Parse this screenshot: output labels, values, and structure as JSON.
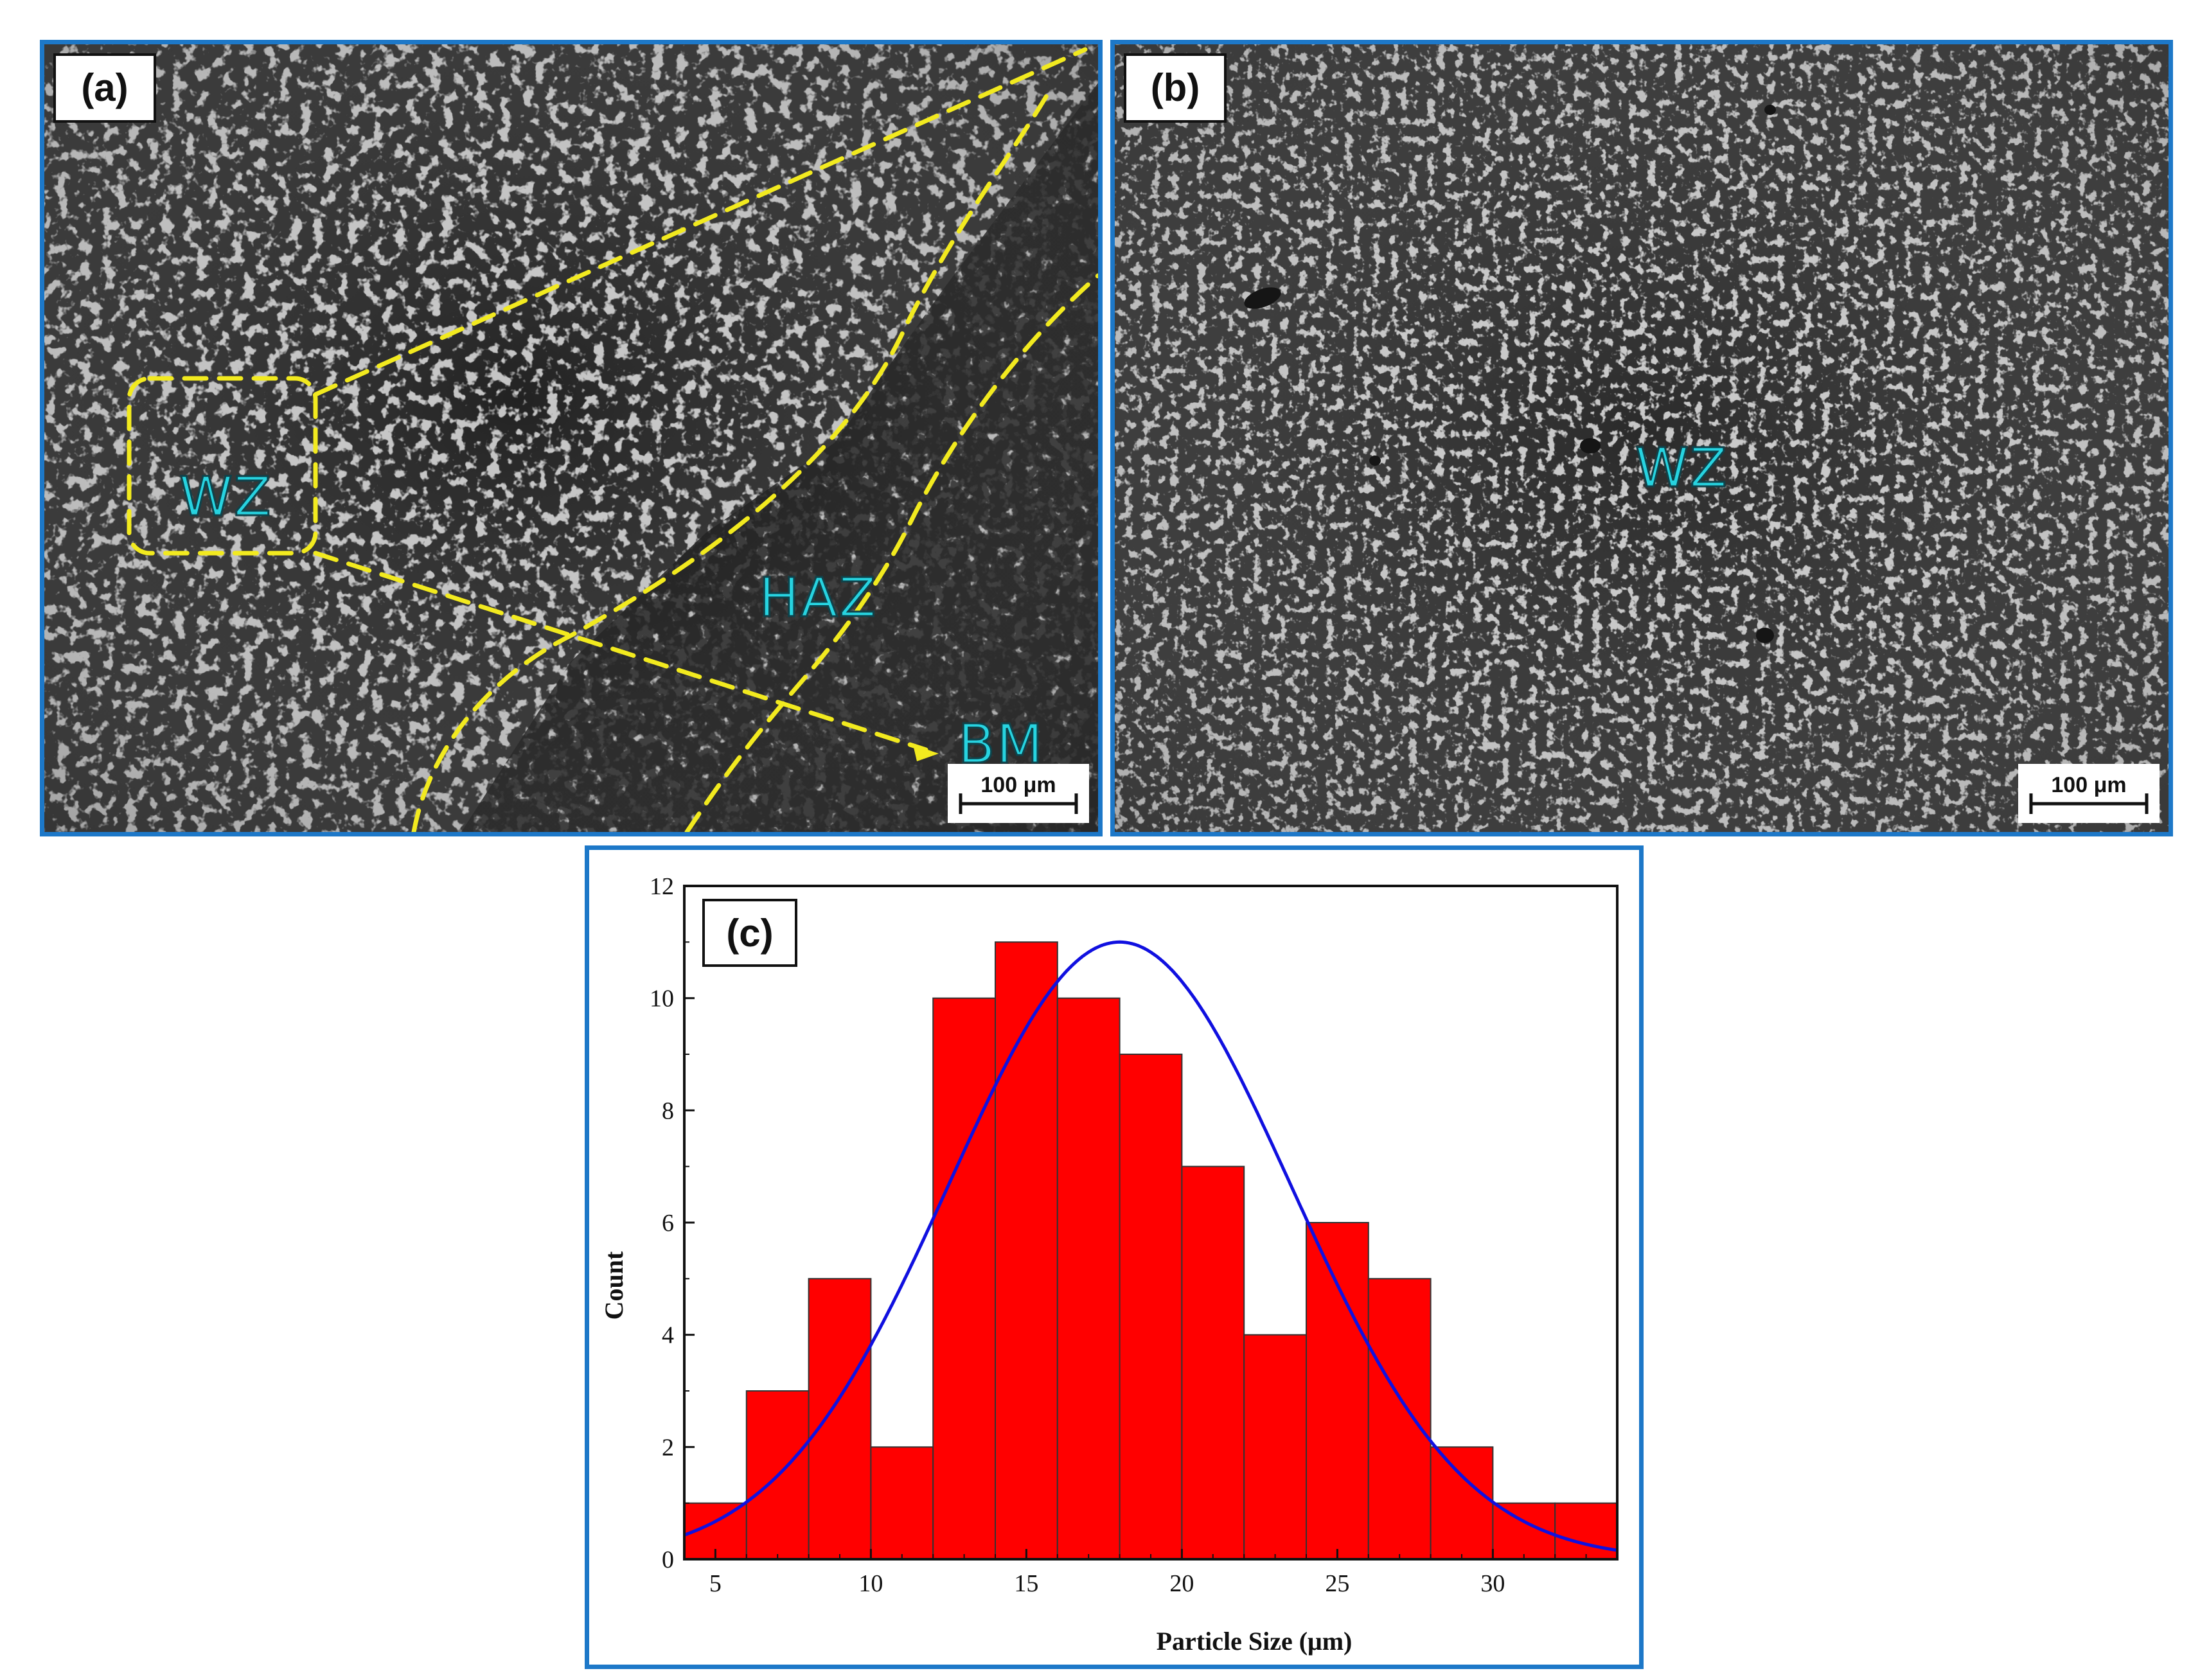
{
  "panels": {
    "a": {
      "tag": "(a)",
      "zones": {
        "wz": "WZ",
        "haz": "HAZ",
        "bm": "BM"
      },
      "scale_bar": "100 μm"
    },
    "b": {
      "tag": "(b)",
      "zones": {
        "wz": "WZ"
      },
      "scale_bar": "100 μm"
    },
    "c": {
      "tag": "(c)"
    }
  },
  "colors": {
    "frame": "#1d78c8",
    "overlay_dash": "#f2ea1f",
    "zone_text": "#27d3e0",
    "bars": "#ff0000",
    "fit_curve": "#1010e0"
  },
  "chart_data": {
    "type": "bar",
    "title": "",
    "xlabel": "Particle Size (μm)",
    "ylabel": "Count",
    "xlim": [
      4,
      34
    ],
    "ylim": [
      0,
      12
    ],
    "x_ticks": [
      5,
      10,
      15,
      20,
      25,
      30
    ],
    "y_ticks": [
      0,
      2,
      4,
      6,
      8,
      10,
      12
    ],
    "bin_edges": [
      4,
      6,
      8,
      10,
      12,
      14,
      16,
      18,
      20,
      22,
      24,
      26,
      28,
      30,
      32,
      34
    ],
    "values": [
      1,
      3,
      5,
      2,
      10,
      11,
      10,
      9,
      7,
      4,
      6,
      5,
      2,
      1,
      1
    ],
    "fit": {
      "type": "normal",
      "mean": 18,
      "std": 5.5,
      "peak": 11
    },
    "grid": false,
    "legend": "none"
  }
}
